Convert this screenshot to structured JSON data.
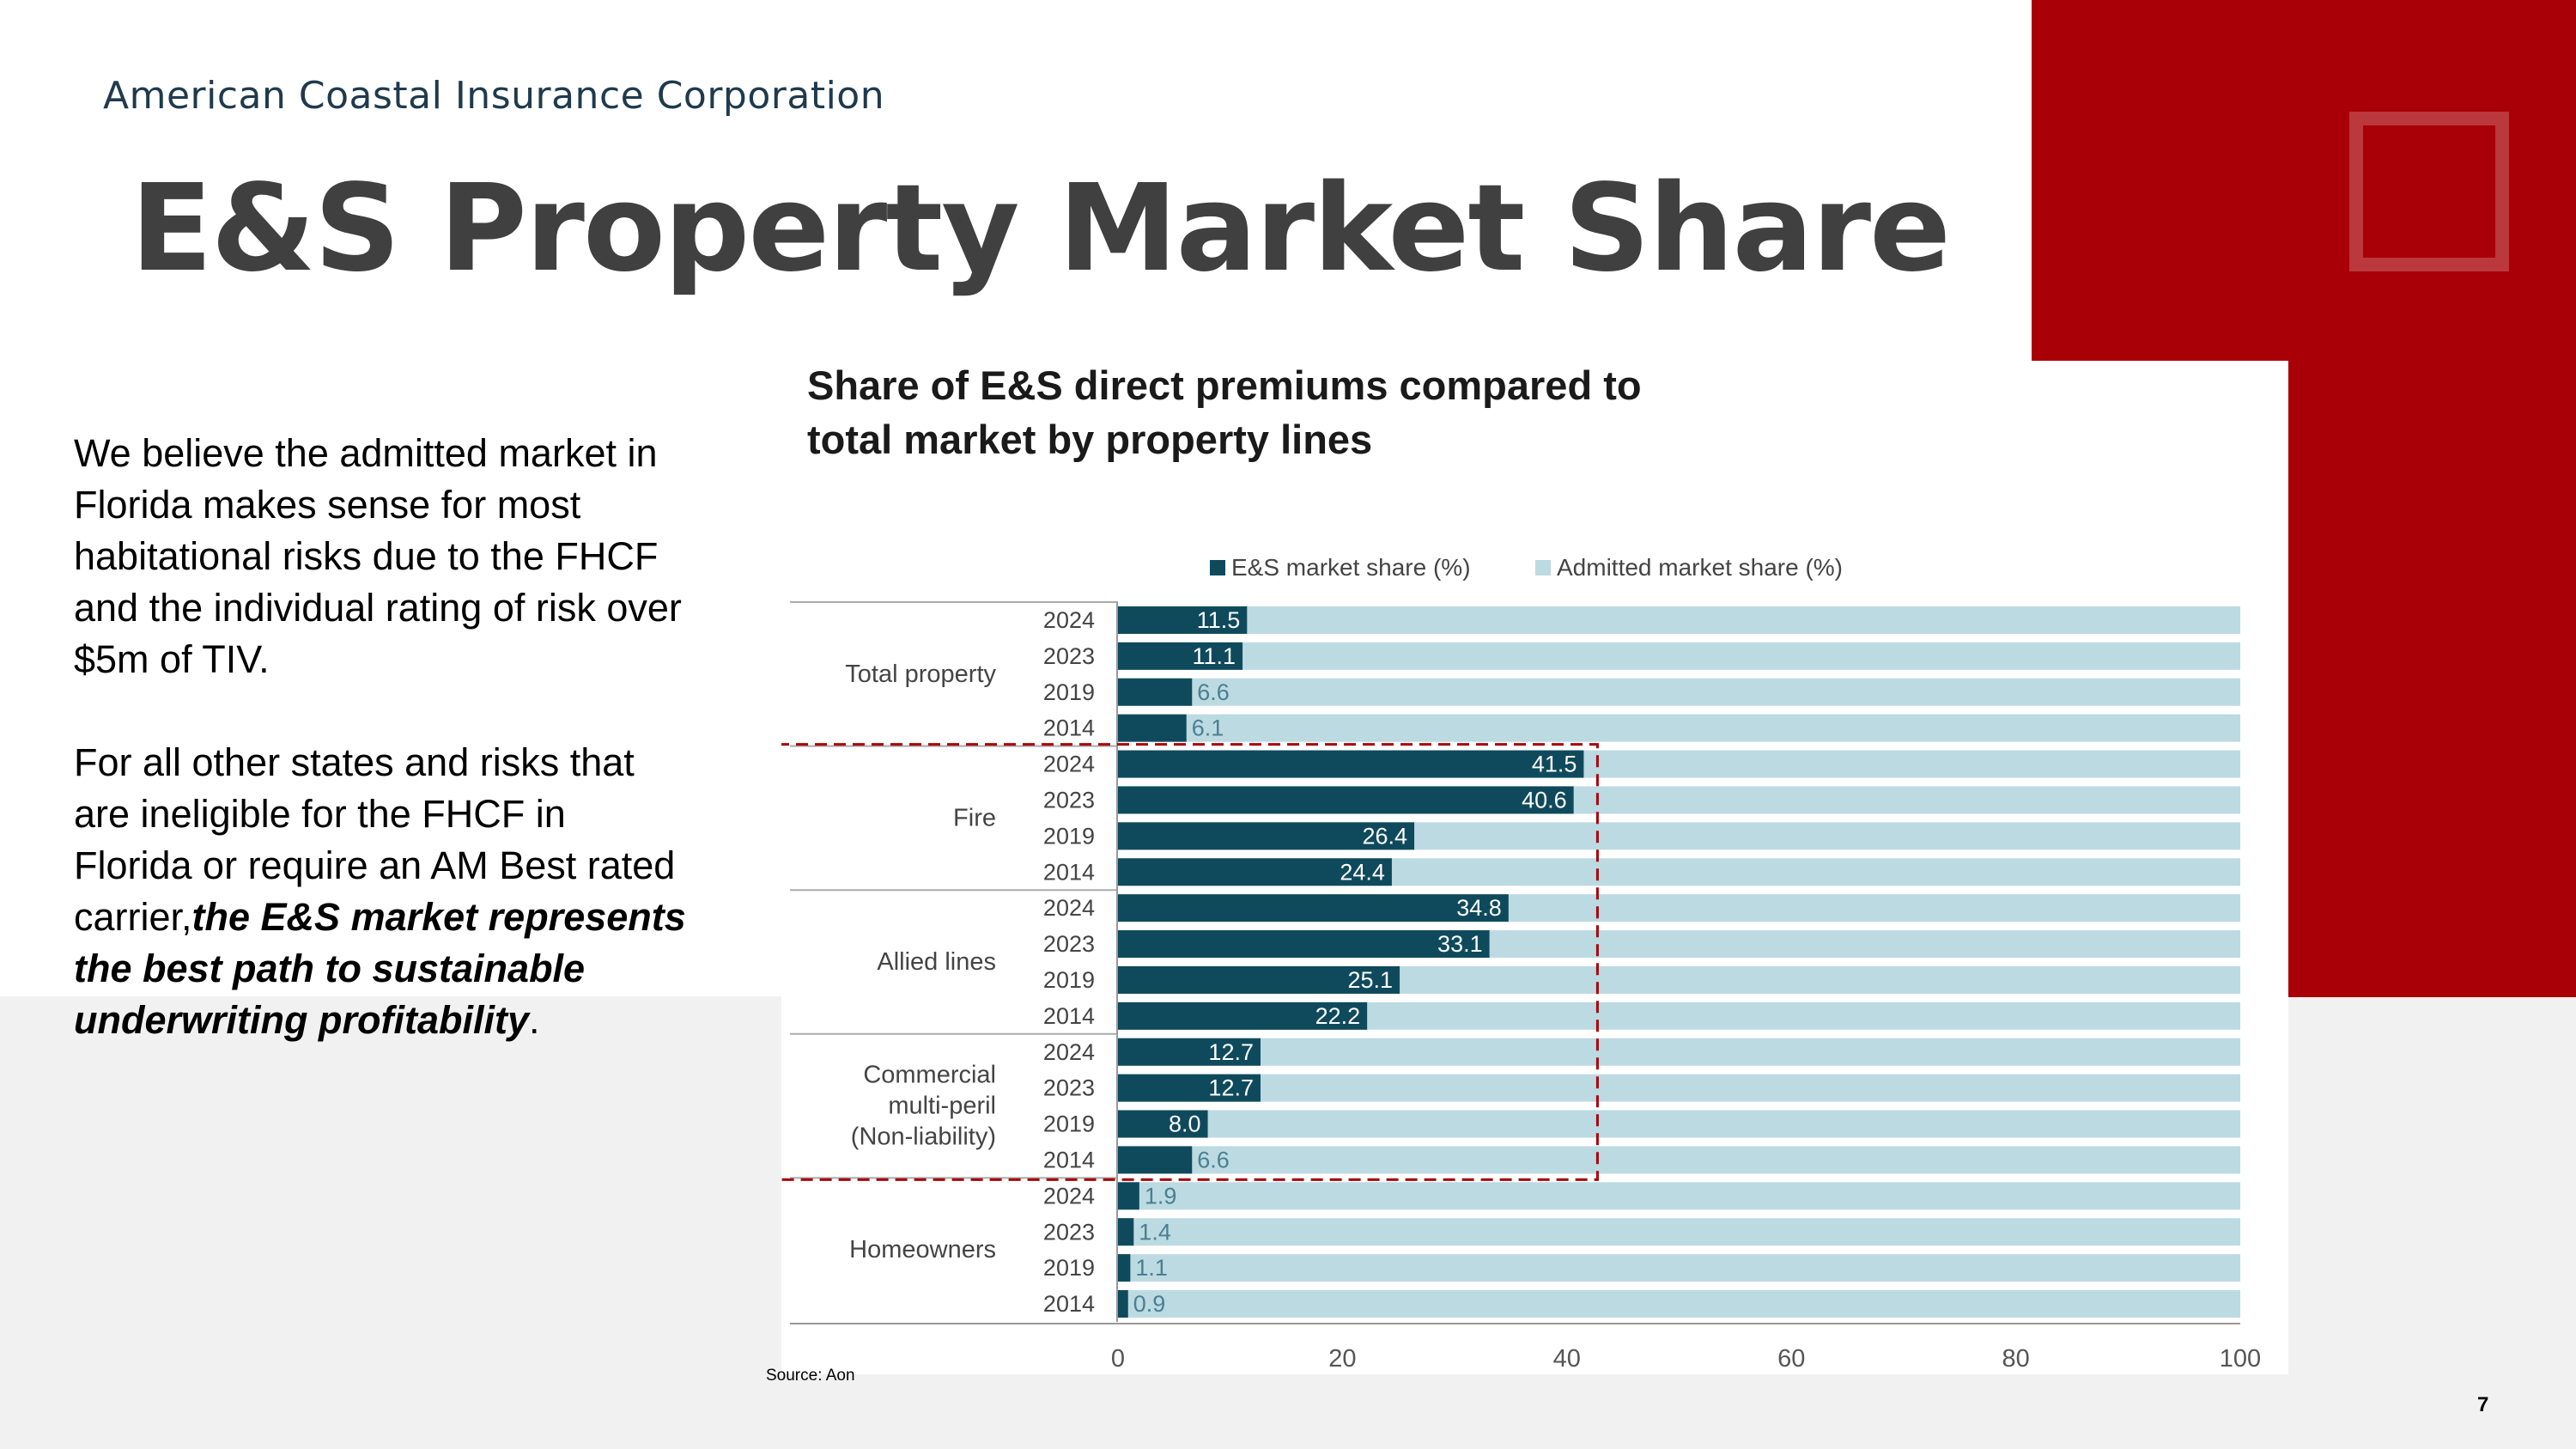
{
  "company": "American Coastal Insurance Corporation",
  "page_title": "E&S Property Market Share",
  "body": {
    "paragraph1": "We believe the admitted market in Florida makes sense for most habitational risks due to the FHCF and the individual rating of risk over $5m of TIV.",
    "paragraph2_start": "For all other states and risks that are ineligible for the FHCF in Florida or require an AM Best rated carrier,",
    "paragraph2_emphasis": "the E&S market represents the best path to sustainable underwriting profitability",
    "paragraph2_end": "."
  },
  "source": "Source: Aon",
  "page_number": "7",
  "colors": {
    "brand_red": "#a80006",
    "es_bar": "#0f4a5c",
    "admitted_bar": "#bcdae2",
    "highlight_box": "#a80006"
  },
  "chart_data": {
    "type": "bar",
    "orientation": "horizontal",
    "stacked_to": 100,
    "title_line1": "Share of E&S direct premiums compared to",
    "title_line2": "total market by property lines",
    "legend": [
      "E&S market share (%)",
      "Admitted market share (%)"
    ],
    "x_ticks": [
      "0",
      "20",
      "40",
      "60",
      "80",
      "100"
    ],
    "xlim": [
      0,
      100
    ],
    "highlighted_groups": [
      "Fire",
      "Allied lines",
      "Commercial multi-peril (Non-liability)"
    ],
    "groups": [
      {
        "label_lines": [
          "Total property"
        ],
        "rows": [
          {
            "year": "2024",
            "es": 11.5,
            "label": "11.5"
          },
          {
            "year": "2023",
            "es": 11.1,
            "label": "11.1"
          },
          {
            "year": "2019",
            "es": 6.6,
            "label": "6.6"
          },
          {
            "year": "2014",
            "es": 6.1,
            "label": "6.1"
          }
        ]
      },
      {
        "label_lines": [
          "Fire"
        ],
        "rows": [
          {
            "year": "2024",
            "es": 41.5,
            "label": "41.5"
          },
          {
            "year": "2023",
            "es": 40.6,
            "label": "40.6"
          },
          {
            "year": "2019",
            "es": 26.4,
            "label": "26.4"
          },
          {
            "year": "2014",
            "es": 24.4,
            "label": "24.4"
          }
        ]
      },
      {
        "label_lines": [
          "Allied lines"
        ],
        "rows": [
          {
            "year": "2024",
            "es": 34.8,
            "label": "34.8"
          },
          {
            "year": "2023",
            "es": 33.1,
            "label": "33.1"
          },
          {
            "year": "2019",
            "es": 25.1,
            "label": "25.1"
          },
          {
            "year": "2014",
            "es": 22.2,
            "label": "22.2"
          }
        ]
      },
      {
        "label_lines": [
          "Commercial",
          "multi-peril",
          "(Non-liability)"
        ],
        "rows": [
          {
            "year": "2024",
            "es": 12.7,
            "label": "12.7"
          },
          {
            "year": "2023",
            "es": 12.7,
            "label": "12.7"
          },
          {
            "year": "2019",
            "es": 8.0,
            "label": "8.0"
          },
          {
            "year": "2014",
            "es": 6.6,
            "label": "6.6"
          }
        ]
      },
      {
        "label_lines": [
          "Homeowners"
        ],
        "rows": [
          {
            "year": "2024",
            "es": 1.9,
            "label": "1.9"
          },
          {
            "year": "2023",
            "es": 1.4,
            "label": "1.4"
          },
          {
            "year": "2019",
            "es": 1.1,
            "label": "1.1"
          },
          {
            "year": "2014",
            "es": 0.9,
            "label": "0.9"
          }
        ]
      }
    ]
  }
}
